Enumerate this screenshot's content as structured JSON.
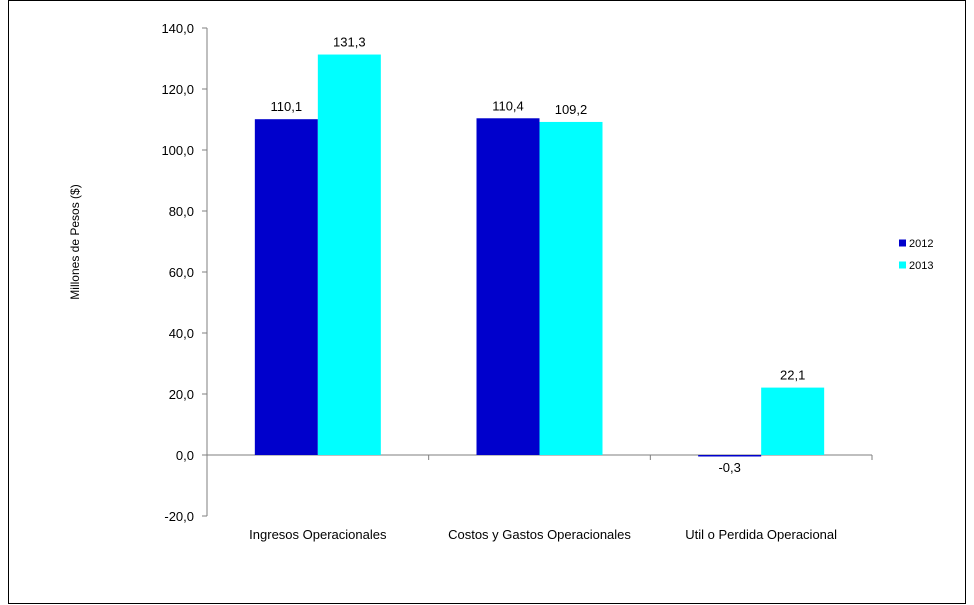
{
  "chart_data": {
    "type": "bar",
    "title": "",
    "xlabel": "",
    "ylabel": "Millones de Pesos ($)",
    "ylim": [
      -20,
      140
    ],
    "ytick_step": 20,
    "ytick_labels": [
      "-20,0",
      "0,0",
      "20,0",
      "40,0",
      "60,0",
      "80,0",
      "100,0",
      "120,0",
      "140,0"
    ],
    "categories": [
      "Ingresos Operacionales",
      "Costos y Gastos Operacionales",
      "Util o Perdida Operacional"
    ],
    "series": [
      {
        "name": "2012",
        "color": "#0000CC",
        "values": [
          110.1,
          110.4,
          -0.3
        ],
        "labels": [
          "110,1",
          "110,4",
          "-0,3"
        ]
      },
      {
        "name": "2013",
        "color": "#00FFFF",
        "values": [
          131.3,
          109.2,
          22.1
        ],
        "labels": [
          "131,3",
          "109,2",
          "22,1"
        ]
      }
    ],
    "grid": false,
    "legend": "right"
  }
}
